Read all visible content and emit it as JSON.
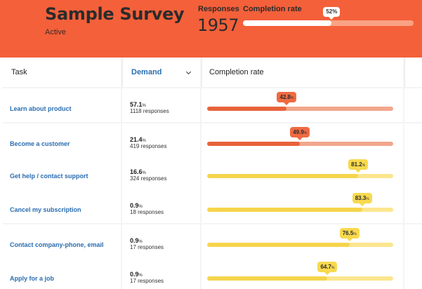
{
  "survey": {
    "title": "Sample Survey",
    "status": "Active",
    "responses_label": "Responses",
    "responses_count": "1957",
    "completion_label": "Completion rate",
    "completion_rate": 52,
    "completion_rate_text": "52%"
  },
  "table": {
    "headers": {
      "task": "Task",
      "demand": "Demand",
      "completion": "Completion rate"
    },
    "colors": {
      "orange_fill": "#e8623a",
      "orange_track": "#f2a68b",
      "orange_badge": "#ef6a42",
      "yellow_fill": "#f6d54c",
      "yellow_track": "#fbe68e",
      "yellow_badge": "#f8d94e"
    },
    "rows": [
      {
        "task": "Learn about product",
        "demand_pct": "57.1",
        "demand_unit": "%",
        "responses": "1118 responses",
        "rate": 42.8,
        "rate_text": "42.8",
        "rate_unit": "%",
        "tone": "orange"
      },
      {
        "task": "Become a customer",
        "demand_pct": "21.4",
        "demand_unit": "%",
        "responses": "419 responses",
        "rate": 49.9,
        "rate_text": "49.9",
        "rate_unit": "%",
        "tone": "orange"
      },
      {
        "task": "Get help / contact support",
        "demand_pct": "16.6",
        "demand_unit": "%",
        "responses": "324 responses",
        "rate": 81.2,
        "rate_text": "81.2",
        "rate_unit": "%",
        "tone": "yellow"
      },
      {
        "task": "Cancel my subscription",
        "demand_pct": "0.9",
        "demand_unit": "%",
        "responses": "18 responses",
        "rate": 83.3,
        "rate_text": "83.3",
        "rate_unit": "%",
        "tone": "yellow"
      },
      {
        "task": "Contact company-phone, email",
        "demand_pct": "0.9",
        "demand_unit": "%",
        "responses": "17 responses",
        "rate": 76.5,
        "rate_text": "76.5",
        "rate_unit": "%",
        "tone": "yellow"
      },
      {
        "task": "Apply for a job",
        "demand_pct": "0.9",
        "demand_unit": "%",
        "responses": "17 responses",
        "rate": 64.7,
        "rate_text": "64.7",
        "rate_unit": "%",
        "tone": "yellow"
      }
    ]
  }
}
